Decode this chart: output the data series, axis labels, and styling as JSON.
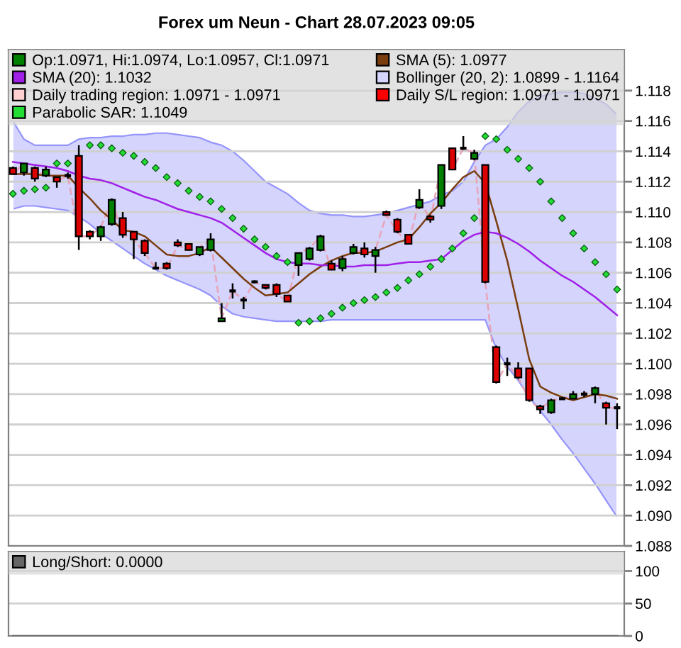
{
  "chart_data": [
    {
      "type": "candlestick",
      "title": "Forex um Neun - Chart 28.07.2023 09:05",
      "categories": [
        null,
        null,
        null,
        null,
        null,
        null,
        null,
        null,
        null,
        null,
        null,
        null,
        null,
        null,
        null,
        null,
        null,
        null,
        null,
        null,
        null,
        null,
        null,
        null,
        null,
        null,
        null,
        null,
        null,
        null,
        null,
        null,
        null,
        null,
        null,
        null,
        null,
        null,
        null,
        null,
        null,
        null,
        null,
        null,
        null,
        null,
        null,
        null,
        null,
        null,
        null,
        null,
        null,
        null,
        null,
        null
      ],
      "ylim": [
        1.088,
        1.1207
      ],
      "yticks": [
        1.088,
        {
          "value": 1.09,
          "label": "1.090"
        },
        1.092,
        1.094,
        1.096,
        1.098,
        {
          "value": 1.1,
          "label": "1.100"
        },
        1.102,
        1.104,
        1.106,
        1.108,
        {
          "value": 1.11,
          "label": "1.110"
        },
        1.112,
        1.114,
        1.116,
        1.118
      ],
      "grid": "y",
      "legend": "top",
      "tick_labels": "y",
      "series": [
        {
          "type": "candlestick",
          "name": "Op:1.0971, Hi:1.0974, Lo:1.0957, Cl:1.0971",
          "color": "#008000",
          "colors": [
            "#dd0000",
            "#008000",
            "#dd0000",
            "#008000",
            "#dd0000",
            "#000000",
            "#dd0000",
            "#dd0000",
            "#008000",
            "#008000",
            "#dd0000",
            "#dd0000",
            "#dd0000",
            "#000000",
            "#dd0000",
            "#dd0000",
            "#dd0000",
            "#008000",
            "#008000",
            "#008000",
            "#000000",
            "#000000",
            "#000000",
            "#dd0000",
            "#dd0000",
            "#dd0000",
            "#008000",
            "#008000",
            "#008000",
            "#dd0000",
            "#008000",
            "#008000",
            "#dd0000",
            "#008000",
            "#dd0000",
            "#dd0000",
            "#dd0000",
            "#008000",
            "#dd0000",
            "#008000",
            "#dd0000",
            "#000000",
            "#008000",
            "#dd0000",
            "#dd0000",
            "#000000",
            "#dd0000",
            "#dd0000",
            "#dd0000",
            "#008000",
            "#000000",
            "#008000",
            "#000000",
            "#008000",
            "#dd0000",
            "#000000"
          ],
          "ohlc": [
            [
              1.1129,
              1.113,
              1.1125,
              1.1125
            ],
            [
              1.1126,
              1.1132,
              1.1124,
              1.1132
            ],
            [
              1.1129,
              1.113,
              1.112,
              1.1122
            ],
            [
              1.1124,
              1.113,
              1.1123,
              1.1128
            ],
            [
              1.1123,
              1.1123,
              1.1116,
              1.112
            ],
            [
              1.1124,
              1.1126,
              1.1122,
              1.1124
            ],
            [
              1.1137,
              1.1144,
              1.1075,
              1.1084
            ],
            [
              1.1087,
              1.1088,
              1.1082,
              1.1084
            ],
            [
              1.1084,
              1.1091,
              1.1081,
              1.109
            ],
            [
              1.1092,
              1.1109,
              1.1091,
              1.1108
            ],
            [
              1.1096,
              1.11,
              1.1083,
              1.1085
            ],
            [
              1.1087,
              1.1087,
              1.1069,
              1.1082
            ],
            [
              1.1081,
              1.1082,
              1.1071,
              1.1073
            ],
            [
              1.1063,
              1.1067,
              1.1063,
              1.1063
            ],
            [
              1.1066,
              1.1067,
              1.1062,
              1.1063
            ],
            [
              1.108,
              1.1082,
              1.1077,
              1.1078
            ],
            [
              1.1079,
              1.1079,
              1.1075,
              1.1075
            ],
            [
              1.1072,
              1.1077,
              1.1071,
              1.1077
            ],
            [
              1.1075,
              1.1086,
              1.1074,
              1.1082
            ],
            [
              1.1028,
              1.104,
              1.1028,
              1.103
            ],
            [
              1.1048,
              1.1053,
              1.1043,
              1.1048
            ],
            [
              1.1042,
              1.1044,
              1.1036,
              1.1042
            ],
            [
              1.1054,
              1.1055,
              1.1053,
              1.1054
            ],
            [
              1.1052,
              1.1052,
              1.1049,
              1.105
            ],
            [
              1.1052,
              1.1053,
              1.1044,
              1.1046
            ],
            [
              1.1045,
              1.1045,
              1.1041,
              1.1041
            ],
            [
              1.1065,
              1.1073,
              1.1058,
              1.1073
            ],
            [
              1.1069,
              1.1077,
              1.1068,
              1.1076
            ],
            [
              1.1075,
              1.1085,
              1.1074,
              1.1084
            ],
            [
              1.1066,
              1.1068,
              1.1062,
              1.1062
            ],
            [
              1.1063,
              1.1071,
              1.1061,
              1.1069
            ],
            [
              1.1073,
              1.1079,
              1.1072,
              1.1077
            ],
            [
              1.1076,
              1.108,
              1.107,
              1.1072
            ],
            [
              1.1071,
              1.1077,
              1.106,
              1.1075
            ],
            [
              1.11,
              1.1101,
              1.1098,
              1.1098
            ],
            [
              1.1095,
              1.1096,
              1.1086,
              1.1087
            ],
            [
              1.1085,
              1.1085,
              1.1079,
              1.1079
            ],
            [
              1.1103,
              1.1115,
              1.1102,
              1.1108
            ],
            [
              1.1097,
              1.1098,
              1.1093,
              1.1095
            ],
            [
              1.1104,
              1.1131,
              1.1102,
              1.1131
            ],
            [
              1.1142,
              1.1142,
              1.1128,
              1.1128
            ],
            [
              1.1142,
              1.115,
              1.1141,
              1.1142
            ],
            [
              1.1135,
              1.1141,
              1.1134,
              1.1139
            ],
            [
              1.1131,
              1.1131,
              1.1053,
              1.1054
            ],
            [
              1.1011,
              1.1012,
              1.0987,
              1.0988
            ],
            [
              1.1,
              1.1004,
              1.0992,
              1.1
            ],
            [
              1.0997,
              1.1001,
              1.099,
              1.0991
            ],
            [
              1.0997,
              1.0997,
              1.0975,
              1.0976
            ],
            [
              1.0972,
              1.0973,
              1.0967,
              1.097
            ],
            [
              1.0968,
              1.0977,
              1.0967,
              1.0976
            ],
            [
              1.0977,
              1.0978,
              1.0977,
              1.0977
            ],
            [
              1.0977,
              1.0982,
              1.0977,
              1.098
            ],
            [
              1.098,
              1.0982,
              1.0978,
              1.098
            ],
            [
              1.098,
              1.0985,
              1.0974,
              1.0984
            ],
            [
              1.0974,
              1.0975,
              1.096,
              1.0971
            ],
            [
              1.0971,
              1.0974,
              1.0957,
              1.0971
            ]
          ]
        },
        {
          "type": "line",
          "name": "SMA (5): 1.0977",
          "color": "#7a3d10",
          "values": [
            1.1125,
            1.1125,
            1.1125,
            1.1124,
            1.1124,
            1.1124,
            1.1116,
            1.1109,
            1.1101,
            1.1095,
            1.1088,
            1.1087,
            1.1084,
            1.1078,
            1.1072,
            1.1071,
            1.1071,
            1.1073,
            1.1077,
            1.107,
            1.1063,
            1.1056,
            1.105,
            1.1045,
            1.1046,
            1.1047,
            1.1053,
            1.1059,
            1.1064,
            1.1068,
            1.1071,
            1.1073,
            1.1073,
            1.1074,
            1.1077,
            1.108,
            1.1082,
            1.109,
            1.1099,
            1.1106,
            1.1115,
            1.1123,
            1.1127,
            1.1119,
            1.1094,
            1.1068,
            1.1036,
            1.1003,
            1.0985,
            1.0981,
            1.0978,
            1.0976,
            1.0978,
            1.098,
            1.0979,
            1.0977
          ]
        },
        {
          "type": "line",
          "name": "SMA (20): 1.1032",
          "color": "#a020e8",
          "values": [
            1.1133,
            1.1132,
            1.1131,
            1.113,
            1.1129,
            1.1127,
            1.1124,
            1.1122,
            1.1121,
            1.1119,
            1.1116,
            1.1113,
            1.111,
            1.1108,
            1.1105,
            1.1102,
            1.11,
            1.1098,
            1.1096,
            1.1093,
            1.1088,
            1.1083,
            1.1078,
            1.1073,
            1.1069,
            1.1067,
            1.1066,
            1.1066,
            1.1065,
            1.1065,
            1.1064,
            1.1064,
            1.1065,
            1.1065,
            1.1065,
            1.1066,
            1.1067,
            1.1067,
            1.1068,
            1.1069,
            1.1075,
            1.1081,
            1.1085,
            1.1087,
            1.1086,
            1.1083,
            1.1079,
            1.1074,
            1.1068,
            1.1063,
            1.1058,
            1.1054,
            1.1049,
            1.1044,
            1.1038,
            1.1032
          ]
        },
        {
          "type": "area",
          "name": "Bollinger (20, 2): 1.0899 - 1.1164",
          "color": "#d4d4fc",
          "values": [
            null,
            null,
            null,
            null,
            null,
            null,
            null,
            null,
            null,
            null,
            null,
            null,
            null,
            null,
            null,
            null,
            null,
            null,
            null,
            null,
            null,
            null,
            null,
            null,
            null,
            null,
            null,
            null,
            null,
            null,
            null,
            null,
            null,
            null,
            null,
            null,
            null,
            null,
            null,
            null,
            null,
            null,
            null,
            null,
            null,
            null,
            null,
            null,
            null,
            null,
            null,
            null,
            null,
            null,
            null,
            null
          ],
          "lower": [
            1.1102,
            1.1104,
            1.1104,
            1.1103,
            1.1102,
            1.1101,
            1.1097,
            1.1092,
            1.1086,
            1.1081,
            1.1076,
            1.1071,
            1.1066,
            1.1062,
            1.1058,
            1.1055,
            1.1052,
            1.1049,
            1.1045,
            1.1038,
            1.1033,
            1.1031,
            1.103,
            1.1029,
            1.1028,
            1.1028,
            1.1028,
            1.1028,
            1.1028,
            1.1029,
            1.1029,
            1.1029,
            1.1029,
            1.1029,
            1.1029,
            1.1029,
            1.1029,
            1.1029,
            1.1029,
            1.1029,
            1.1029,
            1.1029,
            1.1029,
            1.1029,
            1.101,
            1.0998,
            1.0989,
            1.0978,
            1.0969,
            1.096,
            1.095,
            1.0941,
            1.0931,
            1.0921,
            1.091,
            1.0899
          ],
          "upper": [
            1.116,
            1.1148,
            1.1144,
            1.1144,
            1.1144,
            1.1144,
            1.1148,
            1.1149,
            1.1149,
            1.115,
            1.115,
            1.1151,
            1.1151,
            1.1152,
            1.1152,
            1.1151,
            1.115,
            1.1149,
            1.1146,
            1.1144,
            1.114,
            1.1134,
            1.1127,
            1.112,
            1.1116,
            1.1112,
            1.1106,
            1.1101,
            1.1099,
            1.1098,
            1.1098,
            1.1097,
            1.1097,
            1.1098,
            1.1099,
            1.1101,
            1.1103,
            1.1105,
            1.1107,
            1.1111,
            1.1114,
            1.112,
            1.1133,
            1.1144,
            1.1148,
            1.1156,
            1.1166,
            1.1173,
            1.1176,
            1.1178,
            1.1179,
            1.1179,
            1.1178,
            1.1175,
            1.1171,
            1.1164
          ]
        },
        {
          "type": "area",
          "name": "Daily trading region: 1.0971 - 1.0971",
          "color": "#ffd0d0",
          "values": [
            null,
            null,
            null,
            null,
            null,
            null,
            null,
            null,
            null,
            null,
            null,
            null,
            null,
            null,
            null,
            null,
            null,
            null,
            null,
            null,
            null,
            null,
            null,
            null,
            null,
            null,
            null,
            null,
            null,
            null,
            null,
            null,
            null,
            null,
            null,
            null,
            null,
            null,
            null,
            null,
            null,
            null,
            null,
            null,
            null,
            null,
            null,
            null,
            null,
            null,
            null,
            null,
            null,
            null,
            null,
            null
          ]
        },
        {
          "type": "area",
          "name": "Daily S/L region: 1.0971 - 1.0971",
          "color": "#ff0000",
          "values": [
            null,
            null,
            null,
            null,
            null,
            null,
            null,
            null,
            null,
            null,
            null,
            null,
            null,
            null,
            null,
            null,
            null,
            null,
            null,
            null,
            null,
            null,
            null,
            null,
            null,
            null,
            null,
            null,
            null,
            null,
            null,
            null,
            null,
            null,
            null,
            null,
            null,
            null,
            null,
            null,
            null,
            null,
            null,
            null,
            null,
            null,
            null,
            null,
            null,
            null,
            null,
            null,
            null,
            null,
            null,
            null
          ]
        },
        {
          "type": "line",
          "color": "#e8a4b8",
          "line_style": "dashed",
          "values": [
            1.1125,
            1.1132,
            1.1122,
            1.1128,
            1.112,
            1.1124,
            1.1084,
            1.1084,
            1.109,
            1.1108,
            1.1085,
            1.1082,
            1.1073,
            1.1063,
            1.1063,
            1.1078,
            1.1075,
            1.1077,
            1.1082,
            1.103,
            1.1048,
            1.1042,
            1.1054,
            1.105,
            1.1046,
            1.1041,
            1.1073,
            1.1076,
            1.1084,
            1.1062,
            1.1069,
            1.1077,
            1.1072,
            1.1075,
            1.1098,
            1.1087,
            1.1079,
            1.1108,
            1.1095,
            1.1131,
            1.1128,
            1.1142,
            1.1139,
            1.1054,
            1.0988,
            1.1,
            1.0991,
            1.0976,
            1.097,
            1.0976,
            1.0977,
            1.098,
            1.098,
            1.0984,
            1.0971,
            1.0971
          ]
        },
        {
          "type": "scatter",
          "name": "Parabolic SAR: 1.1049",
          "color": "#22dd33",
          "marker": "diamond",
          "values": [
            1.1112,
            1.1114,
            1.1115,
            1.1116,
            1.1132,
            1.1132,
            null,
            1.1144,
            1.1144,
            1.1142,
            1.1139,
            1.1137,
            1.1133,
            1.1129,
            1.1123,
            1.1119,
            1.1114,
            1.111,
            1.1107,
            1.1102,
            1.1096,
            1.1089,
            1.1082,
            1.1077,
            1.1071,
            1.1067,
            1.1027,
            1.1028,
            1.103,
            1.1033,
            1.1037,
            1.104,
            1.1042,
            1.1044,
            1.1047,
            1.105,
            1.1055,
            1.1059,
            1.1064,
            1.1069,
            1.1076,
            1.1086,
            1.1096,
            1.115,
            1.1148,
            1.1141,
            1.1135,
            1.1129,
            1.112,
            1.1107,
            1.1096,
            1.1086,
            1.1076,
            1.1067,
            1.1059,
            1.1049
          ]
        }
      ]
    },
    {
      "type": "line",
      "categories": [
        null,
        null,
        null,
        null,
        null,
        null,
        null,
        null,
        null,
        null,
        null,
        null,
        null,
        null,
        null,
        null,
        null,
        null,
        null,
        null,
        null,
        null,
        null,
        null,
        null,
        null,
        null,
        null,
        null,
        null,
        null,
        null,
        null,
        null,
        null,
        null,
        null,
        null,
        null,
        null,
        null,
        null,
        null,
        null,
        null,
        null,
        null,
        null,
        null,
        null,
        null,
        null,
        null,
        null,
        null,
        null
      ],
      "ylim": [
        0,
        130
      ],
      "yticks": [
        0,
        50,
        100
      ],
      "grid": "y",
      "legend": "top",
      "tick_labels": "y",
      "series": [
        {
          "name": "Long/Short: 0.0000",
          "color": "#666666",
          "values": [
            0,
            0,
            0,
            0,
            0,
            0,
            0,
            0,
            0,
            0,
            0,
            0,
            0,
            0,
            0,
            0,
            0,
            0,
            0,
            0,
            0,
            0,
            0,
            0,
            0,
            0,
            0,
            0,
            0,
            0,
            0,
            0,
            0,
            0,
            0,
            0,
            0,
            0,
            0,
            0,
            0,
            0,
            0,
            0,
            0,
            0,
            0,
            0,
            0,
            0,
            0,
            0,
            0,
            0,
            0,
            0
          ]
        }
      ]
    }
  ]
}
